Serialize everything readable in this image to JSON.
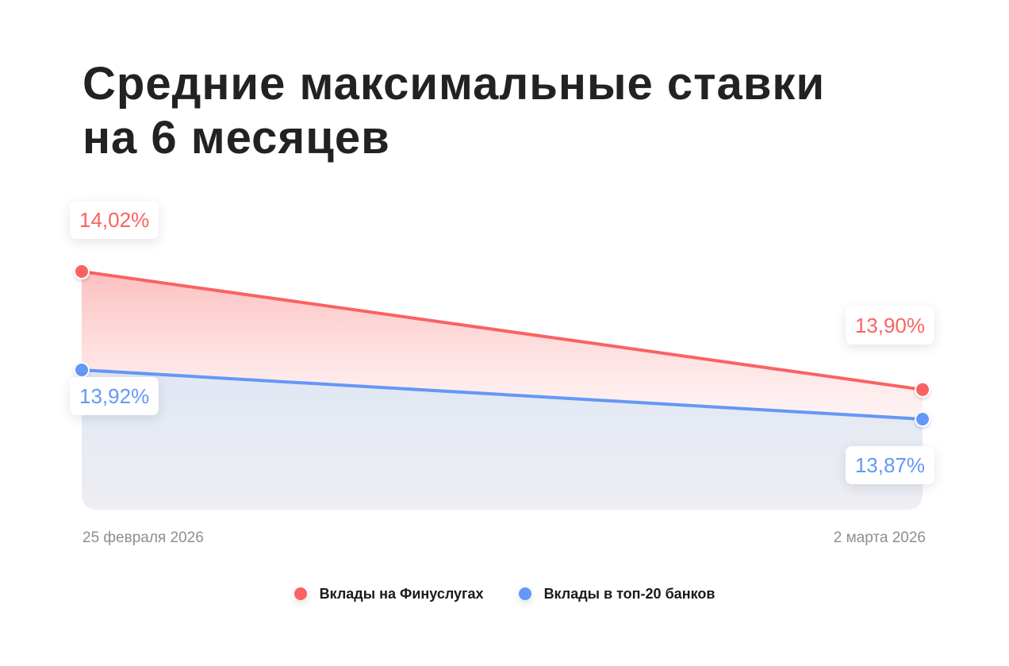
{
  "title": {
    "line1": "Средние максимальные ставки",
    "line2": "на 6 месяцев"
  },
  "colors": {
    "series1": "#fa6262",
    "series2": "#6497f7",
    "title": "#222222",
    "axis_text": "#8e8e93"
  },
  "chart_data": {
    "type": "area",
    "x": [
      "25 февраля 2026",
      "2 марта 2026"
    ],
    "series": [
      {
        "name": "Вклады на Финуслугах",
        "values": [
          14.02,
          13.9
        ],
        "labels": [
          "14,02%",
          "13,90%"
        ],
        "color": "#fa6262"
      },
      {
        "name": "Вклады в топ-20 банков",
        "values": [
          13.92,
          13.87
        ],
        "labels": [
          "13,92%",
          "13,87%"
        ],
        "color": "#6497f7"
      }
    ],
    "grid": false,
    "legend": "bottom-center"
  },
  "axis": {
    "start_label": "25 февраля 2026",
    "end_label": "2 марта 2026"
  },
  "legend": {
    "items": [
      {
        "label": "Вклады на Финуслугах",
        "color": "#fa6262"
      },
      {
        "label": "Вклады в топ-20 банков",
        "color": "#6497f7"
      }
    ]
  }
}
